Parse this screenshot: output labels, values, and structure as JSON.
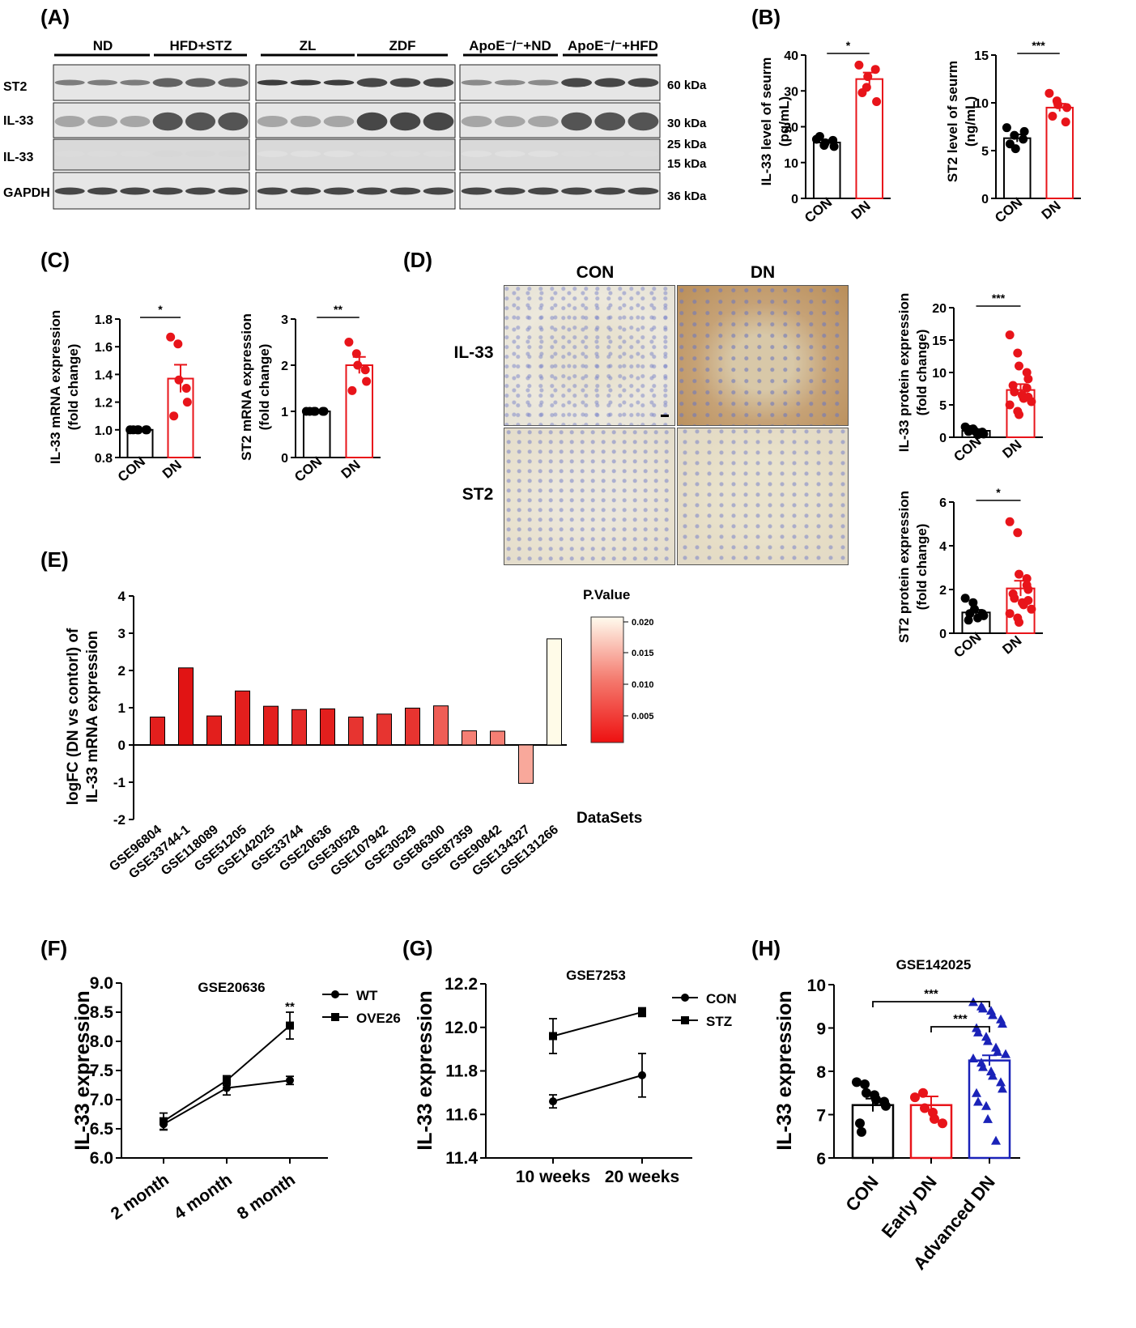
{
  "panels": {
    "A": {
      "label": "(A)",
      "groups": [
        "ND",
        "HFD+STZ",
        "ZL",
        "ZDF",
        "ApoE⁻/⁻+ND",
        "ApoE⁻/⁻+HFD"
      ],
      "rows": [
        "ST2",
        "IL-33",
        "IL-33",
        "GAPDH"
      ],
      "sizes": [
        "60 kDa",
        "30 kDa",
        "25 kDa",
        "15 kDa",
        "36 kDa"
      ]
    },
    "B": {
      "label": "(B)",
      "charts": [
        {
          "ylabel": [
            "IL-33 level of seurm",
            "(pg/mL)"
          ],
          "categories": [
            "CON",
            "DN"
          ],
          "means": [
            15.6,
            33.3
          ],
          "sem": [
            0.7,
            1.8
          ],
          "ylim": [
            0,
            40
          ],
          "ticks": [
            0,
            10,
            20,
            30,
            40
          ],
          "points": [
            [
              16.5,
              14.8,
              15.5,
              16.2,
              14.5,
              17.3
            ],
            [
              37.2,
              31.0,
              34.0,
              36.0,
              27.0,
              29.5
            ]
          ],
          "sig": "*"
        },
        {
          "ylabel": [
            "ST2  level of seurm",
            "(ng/mL)"
          ],
          "categories": [
            "CON",
            "DN"
          ],
          "means": [
            6.3,
            9.5
          ],
          "sem": [
            0.4,
            0.4
          ],
          "ylim": [
            0,
            15
          ],
          "ticks": [
            0,
            5,
            10,
            15
          ],
          "points": [
            [
              7.4,
              6.6,
              5.2,
              6.2,
              7.0,
              5.7
            ],
            [
              11.0,
              10.2,
              9.8,
              8.0,
              9.5,
              8.6
            ]
          ],
          "sig": "***"
        }
      ]
    },
    "C": {
      "label": "(C)",
      "charts": [
        {
          "ylabel": [
            "IL-33 mRNA expression",
            "(fold change)"
          ],
          "categories": [
            "CON",
            "DN"
          ],
          "means": [
            1.0,
            1.37
          ],
          "sem": [
            0.0,
            0.1
          ],
          "ylim": [
            0.8,
            1.8
          ],
          "ticks": [
            "0.8",
            "1.0",
            "1.2",
            "1.4",
            "1.6",
            "1.8"
          ],
          "points": [
            [
              1.0,
              1.0,
              1.0,
              1.0,
              1.0,
              1.0
            ],
            [
              1.67,
              1.62,
              1.36,
              1.3,
              1.2,
              1.1
            ]
          ],
          "sig": "*"
        },
        {
          "ylabel": [
            "ST2 mRNA expression",
            "(fold change)"
          ],
          "categories": [
            "CON",
            "DN"
          ],
          "means": [
            1.0,
            2.0
          ],
          "sem": [
            0.0,
            0.18
          ],
          "ylim": [
            0,
            3
          ],
          "ticks": [
            "0",
            "1",
            "2",
            "3"
          ],
          "points": [
            [
              1.0,
              1.0,
              1.0,
              1.0,
              1.0,
              1.0
            ],
            [
              2.5,
              2.25,
              2.0,
              1.9,
              1.65,
              1.45
            ]
          ],
          "sig": "**"
        }
      ]
    },
    "D": {
      "label": "(D)",
      "columns": [
        "CON",
        "DN"
      ],
      "rows": [
        "IL-33",
        "ST2"
      ],
      "charts": [
        {
          "ylabel": [
            "IL-33 protein expression",
            "(fold change)"
          ],
          "categories": [
            "CON",
            "DN"
          ],
          "means": [
            1.0,
            7.3
          ],
          "sem": [
            0.25,
            0.9
          ],
          "ylim": [
            0,
            20
          ],
          "ticks": [
            "0",
            "5",
            "10",
            "15",
            "20"
          ],
          "points": [
            [
              1.6,
              1.3,
              1.0,
              0.8,
              0.5,
              0.9,
              1.2,
              0.4
            ],
            [
              15.8,
              13.0,
              11.0,
              10.0,
              9.0,
              8.0,
              7.0,
              6.5,
              6.0,
              5.5,
              5.0,
              4.0,
              3.5,
              7.6,
              6.2
            ]
          ],
          "sig": "***"
        },
        {
          "ylabel": [
            "ST2 protein expression",
            "(fold change)"
          ],
          "categories": [
            "CON",
            "DN"
          ],
          "means": [
            0.95,
            2.05
          ],
          "sem": [
            0.12,
            0.35
          ],
          "ylim": [
            0,
            6
          ],
          "ticks": [
            "0",
            "2",
            "4",
            "6"
          ],
          "points": [
            [
              1.6,
              1.4,
              1.1,
              0.9,
              0.8,
              0.6,
              0.9,
              0.7
            ],
            [
              5.1,
              4.6,
              2.7,
              2.2,
              2.0,
              1.8,
              1.6,
              1.4,
              1.3,
              1.1,
              0.9,
              0.7,
              0.5,
              2.5,
              1.5
            ]
          ],
          "sig": "*"
        }
      ]
    },
    "E": {
      "label": "(E)",
      "ylabel": [
        "logFC (DN vs contorl) of",
        "IL-33 mRNA expression"
      ],
      "xlabel": "DataSets",
      "legend_title": "P.Value",
      "legend_ticks": [
        "0.020",
        "0.015",
        "0.010",
        "0.005"
      ],
      "ticks": [
        "-2",
        "-1",
        "0",
        "1",
        "2",
        "3",
        "4"
      ]
    },
    "F": {
      "label": "(F)",
      "title": "GSE20636",
      "ylabel": "IL-33 expression",
      "legend": [
        "WT",
        "OVE26"
      ],
      "sig": "**",
      "ticks": [
        "6.0",
        "6.5",
        "7.0",
        "7.5",
        "8.0",
        "8.5",
        "9.0"
      ]
    },
    "G": {
      "label": "(G)",
      "title": "GSE7253",
      "ylabel": "IL-33 expression",
      "legend": [
        "CON",
        "STZ"
      ],
      "ticks": [
        "11.4",
        "11.6",
        "11.8",
        "12.0",
        "12.2"
      ]
    },
    "H": {
      "label": "(H)",
      "title": "GSE142025",
      "ylabel": "IL-33 expression",
      "categories": [
        "CON",
        "Early DN",
        "Advanced DN"
      ],
      "sig": [
        "***",
        "***"
      ],
      "ticks": [
        "6",
        "7",
        "8",
        "9",
        "10"
      ]
    }
  },
  "chart_data": [
    {
      "type": "bar",
      "title": "",
      "categories": [
        "GSE96804",
        "GSE33744-1",
        "GSE118089",
        "GSE51205",
        "GSE142025",
        "GSE33744",
        "GSE20636",
        "GSE30528",
        "GSE107942",
        "GSE30529",
        "GSE86300",
        "GSE87359",
        "GSE90842",
        "GSE134327",
        "GSE131266"
      ],
      "values": [
        0.75,
        2.07,
        0.78,
        1.45,
        1.04,
        0.95,
        0.97,
        0.75,
        0.83,
        0.99,
        1.05,
        0.38,
        0.37,
        -1.03,
        2.85
      ],
      "p_values": [
        0.002,
        0.001,
        0.002,
        0.002,
        0.002,
        0.003,
        0.002,
        0.004,
        0.004,
        0.004,
        0.008,
        0.011,
        0.011,
        0.014,
        0.02
      ],
      "xlabel": "DataSets",
      "ylabel": "logFC (DN vs contorl) of IL-33 mRNA expression",
      "ylim": [
        -2,
        4
      ]
    },
    {
      "type": "line",
      "title": "GSE20636",
      "categories": [
        "2 month",
        "4 month",
        "8 month"
      ],
      "series": [
        {
          "name": "WT",
          "values": [
            6.58,
            7.2,
            7.33
          ],
          "err": [
            0.1,
            0.12,
            0.07
          ],
          "marker": "circle"
        },
        {
          "name": "OVE26",
          "values": [
            6.63,
            7.33,
            8.27
          ],
          "err": [
            0.14,
            0.08,
            0.23
          ],
          "marker": "square"
        }
      ],
      "ylabel": "IL-33 expression",
      "ylim": [
        6.0,
        9.0
      ]
    },
    {
      "type": "line",
      "title": "GSE7253",
      "categories": [
        "10 weeks",
        "20 weeks"
      ],
      "series": [
        {
          "name": "CON",
          "values": [
            11.66,
            11.78
          ],
          "err": [
            0.03,
            0.1
          ],
          "marker": "circle"
        },
        {
          "name": "STZ",
          "values": [
            11.96,
            12.07
          ],
          "err": [
            0.08,
            0.02
          ],
          "marker": "square"
        }
      ],
      "ylabel": "IL-33 expression",
      "ylim": [
        11.4,
        12.2
      ]
    },
    {
      "type": "bar",
      "title": "GSE142025",
      "categories": [
        "CON",
        "Early DN",
        "Advanced DN"
      ],
      "values": [
        7.22,
        7.22,
        8.25
      ],
      "sem": [
        0.15,
        0.2,
        0.12
      ],
      "points": [
        [
          7.75,
          7.7,
          7.5,
          7.45,
          7.35,
          7.3,
          7.2,
          6.8,
          6.6
        ],
        [
          7.4,
          7.5,
          7.15,
          7.05,
          6.9,
          6.8
        ],
        [
          9.6,
          9.5,
          9.45,
          9.4,
          9.3,
          9.2,
          9.1,
          9.0,
          8.9,
          8.8,
          8.7,
          8.55,
          8.45,
          8.4,
          8.3,
          8.2,
          8.1,
          8.0,
          7.9,
          7.75,
          7.6,
          7.5,
          7.3,
          7.2,
          6.9,
          6.4
        ]
      ],
      "ylabel": "IL-33 expression",
      "ylim": [
        6,
        10
      ]
    }
  ]
}
